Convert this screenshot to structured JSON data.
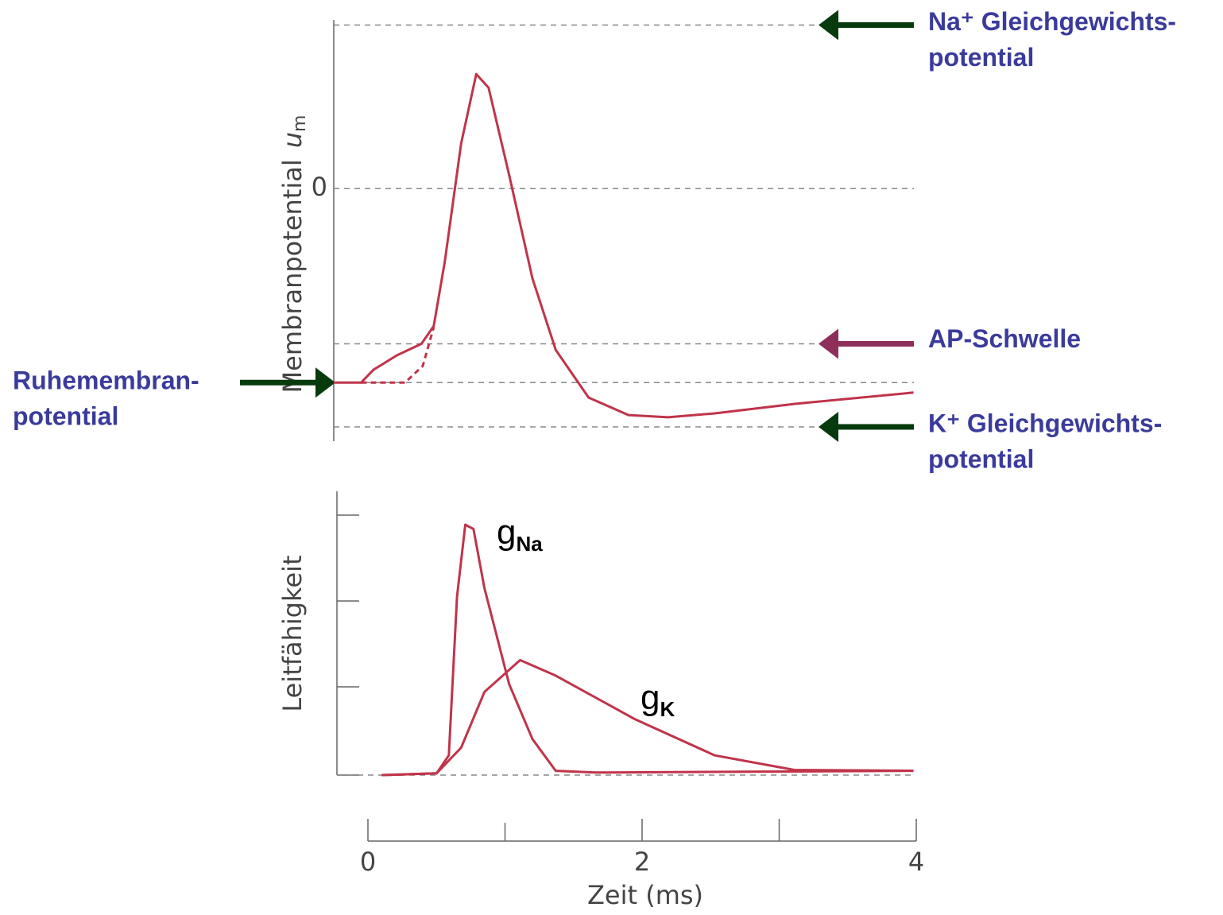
{
  "chart_data": [
    {
      "type": "line",
      "ylabel": "Membranpotential",
      "ysymbol": "u",
      "ysymbol_sub": "m",
      "xlim": [
        -0.25,
        3.98
      ],
      "ylim": [
        -90,
        60
      ],
      "yticks": [
        0
      ],
      "grid": true,
      "series": [
        {
          "color": "#c0344a",
          "dash": false,
          "x": [
            -0.25,
            -0.05,
            0.04,
            0.21,
            0.39,
            0.48,
            0.56,
            0.68,
            0.79,
            0.88,
            1.03,
            1.2,
            1.37,
            1.61,
            1.9,
            2.19,
            2.53,
            3.11,
            3.98
          ],
          "values": [
            -70,
            -70,
            -65.4,
            -60.2,
            -56,
            -49.6,
            -26.6,
            16.3,
            41.3,
            36.4,
            4.9,
            -32.4,
            -58.2,
            -75.4,
            -81.7,
            -82.5,
            -81.1,
            -77.7,
            -73.6
          ]
        },
        {
          "color": "#c0344a",
          "dash": true,
          "x": [
            -0.05,
            0.27,
            0.4,
            0.48
          ],
          "values": [
            -70,
            -70,
            -64,
            -50
          ]
        }
      ],
      "annotations": [
        {
          "lines": [
            "Na⁺ Gleichgewichts-",
            "potential"
          ],
          "value": 59,
          "side": "right",
          "color": "#073a0c"
        },
        {
          "lines": [
            "AP-Schwelle"
          ],
          "value": -56,
          "side": "right",
          "color": "#8e2f5a"
        },
        {
          "lines": [
            "Ruhemembran-",
            "potential"
          ],
          "value": -70,
          "side": "left",
          "color": "#073a0c"
        },
        {
          "lines": [
            "K⁺ Gleichgewichts-",
            "potential"
          ],
          "value": -86,
          "side": "right",
          "color": "#073a0c"
        }
      ]
    },
    {
      "type": "line",
      "ylabel": "Leitfähigkeit",
      "xlabel": "Zeit (ms)",
      "xlim": [
        -0.25,
        3.98
      ],
      "ylim": [
        0,
        3.3
      ],
      "xticks": [
        0,
        2,
        4
      ],
      "series": [
        {
          "name": "g",
          "name_sub": "Na",
          "color": "#c0344a",
          "x": [
            0.1,
            0.5,
            0.59,
            0.65,
            0.71,
            0.77,
            0.85,
            1.03,
            1.2,
            1.37,
            1.66,
            3.98
          ],
          "values": [
            0,
            0.02,
            0.23,
            2.08,
            2.92,
            2.87,
            2.18,
            1.06,
            0.42,
            0.05,
            0.03,
            0.05
          ]
        },
        {
          "name": "g",
          "name_sub": "K",
          "color": "#c0344a",
          "x": [
            0.1,
            0.5,
            0.68,
            0.85,
            1.11,
            1.37,
            1.95,
            2.53,
            3.11,
            3.98
          ],
          "values": [
            0,
            0.02,
            0.32,
            0.97,
            1.34,
            1.16,
            0.65,
            0.23,
            0.06,
            0.05
          ]
        }
      ]
    }
  ]
}
